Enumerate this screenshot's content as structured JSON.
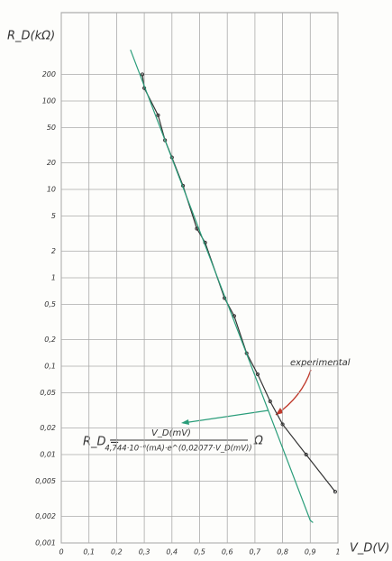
{
  "chart_data": {
    "type": "line",
    "y_label": "R_D(kΩ)",
    "x_label": "V_D(V)",
    "annotation": "experimental",
    "formula": {
      "lhs": "R_D =",
      "numerator": "V_D(mV)",
      "denominator": "4,744·10⁻⁶(mA)·e^(0,02077·V_D(mV))",
      "unit": "Ω"
    },
    "log_y": true,
    "grid": true,
    "xlim": [
      0,
      1
    ],
    "ylim": [
      0.001,
      1000
    ],
    "xticks": [
      0,
      {
        "value": 0.1,
        "label": "0,1"
      },
      {
        "value": 0.2,
        "label": "0,2"
      },
      {
        "value": 0.3,
        "label": "0,3"
      },
      {
        "value": 0.4,
        "label": "0,4"
      },
      {
        "value": 0.5,
        "label": "0,5"
      },
      {
        "value": 0.6,
        "label": "0,6"
      },
      {
        "value": 0.7,
        "label": "0,7"
      },
      {
        "value": 0.8,
        "label": "0,8"
      },
      {
        "value": 0.9,
        "label": "0,9"
      },
      1
    ],
    "yticks": [
      {
        "value": 0.001,
        "label": "0,001"
      },
      {
        "value": 0.002,
        "label": "0,002"
      },
      {
        "value": 0.005,
        "label": "0,005"
      },
      {
        "value": 0.01,
        "label": "0,01"
      },
      {
        "value": 0.02,
        "label": "0,02"
      },
      {
        "value": 0.05,
        "label": "0,05"
      },
      {
        "value": 0.1,
        "label": "0,1"
      },
      {
        "value": 0.2,
        "label": "0,2"
      },
      {
        "value": 0.5,
        "label": "0,5"
      },
      1,
      2,
      5,
      10,
      20,
      50,
      100,
      200
    ],
    "series": [
      {
        "name": "experimental",
        "color": "#333333",
        "x": [
          0.293,
          0.3,
          0.35,
          0.375,
          0.4,
          0.44,
          0.49,
          0.52,
          0.59,
          0.625,
          0.67,
          0.71,
          0.755,
          0.8,
          0.885,
          0.99
        ],
        "values": [
          200,
          140,
          69,
          36,
          23,
          11,
          3.6,
          2.5,
          0.59,
          0.37,
          0.14,
          0.081,
          0.04,
          0.022,
          0.01,
          0.0038
        ]
      },
      {
        "color": "#2a9d7a",
        "x": [
          0.25,
          0.9,
          0.91
        ],
        "values": [
          380,
          0.0018,
          0.0017
        ]
      }
    ]
  }
}
